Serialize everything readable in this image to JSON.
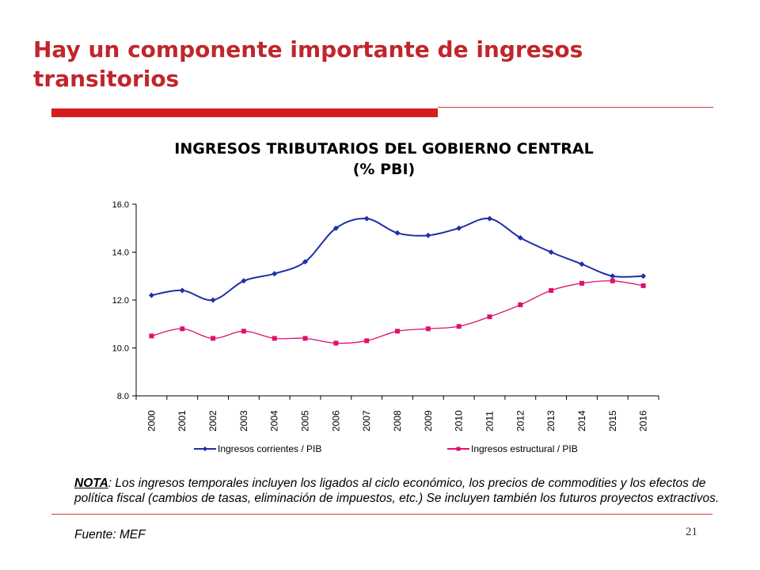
{
  "slide": {
    "title": "Hay un componente importante de ingresos transitorios",
    "page_number": "21",
    "note_label": "NOTA",
    "note_text": ": Los ingresos temporales incluyen los ligados al ciclo económico, los precios de commodities y los efectos de política fiscal (cambios de tasas, eliminación de impuestos, etc.) Se incluyen también los futuros proyectos extractivos.",
    "source": "Fuente: MEF",
    "accent_color": "#d41e20"
  },
  "chart_data": {
    "type": "line",
    "title": "INGRESOS TRIBUTARIOS DEL GOBIERNO CENTRAL",
    "subtitle": "(% PBI)",
    "categories": [
      "2000",
      "2001",
      "2002",
      "2003",
      "2004",
      "2005",
      "2006",
      "2007",
      "2008",
      "2009",
      "2010",
      "2011",
      "2012",
      "2013",
      "2014",
      "2015",
      "2016"
    ],
    "series": [
      {
        "name": "Ingresos corrientes / PIB",
        "color": "#1f2fa8",
        "marker": "diamond",
        "values": [
          12.2,
          12.4,
          12.0,
          12.8,
          13.1,
          13.6,
          15.0,
          15.4,
          14.8,
          14.7,
          15.0,
          15.4,
          14.6,
          14.0,
          13.5,
          13.0,
          13.0
        ]
      },
      {
        "name": "Ingresos estructural / PIB",
        "color": "#e0106e",
        "marker": "square",
        "values": [
          10.5,
          10.8,
          10.4,
          10.7,
          10.4,
          10.4,
          10.2,
          10.3,
          10.7,
          10.8,
          10.9,
          11.3,
          11.8,
          12.4,
          12.7,
          12.8,
          12.6
        ]
      }
    ],
    "ylim": [
      8.0,
      16.0
    ],
    "yticks": [
      "8.0",
      "10.0",
      "12.0",
      "14.0",
      "16.0"
    ],
    "grid": false,
    "legend_position": "bottom"
  }
}
